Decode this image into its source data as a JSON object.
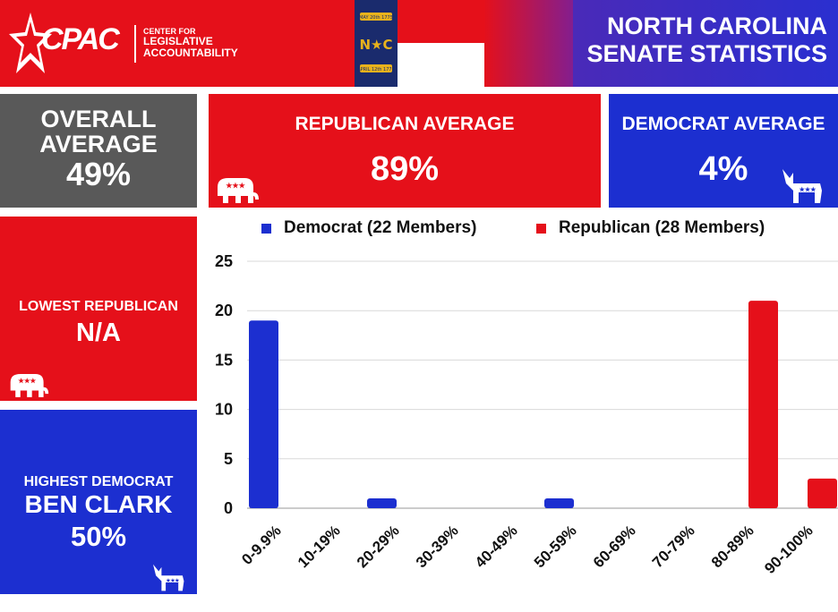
{
  "header": {
    "logo_text": "CPAC",
    "logo_sub_top": "CENTER FOR",
    "logo_sub_line1": "LEGISLATIVE",
    "logo_sub_line2": "ACCOUNTABILITY",
    "title_line1": "NORTH CAROLINA",
    "title_line2": "SENATE STATISTICS",
    "flag": {
      "letters": "N★C",
      "top_scroll": "MAY 20th 1775",
      "bottom_scroll": "APRIL 12th 1776",
      "colors": {
        "blue": "#1a2b6d",
        "red": "#e5101a",
        "white": "#ffffff",
        "gold": "#e8b21c"
      }
    }
  },
  "stats": {
    "overall": {
      "label_line1": "OVERALL",
      "label_line2": "AVERAGE",
      "value": "49%"
    },
    "republican": {
      "label": "REPUBLICAN AVERAGE",
      "value": "89%"
    },
    "democrat": {
      "label": "DEMOCRAT AVERAGE",
      "value": "4%"
    },
    "lowest_republican": {
      "label": "LOWEST REPUBLICAN",
      "value": "N/A"
    },
    "highest_democrat": {
      "label": "HIGHEST DEMOCRAT",
      "name": "BEN CLARK",
      "value": "50%"
    }
  },
  "colors": {
    "republican": "#e5101a",
    "democrat": "#1c2fd0",
    "overall": "#595959"
  },
  "chart_data": {
    "type": "bar",
    "title": "",
    "xlabel": "",
    "ylabel": "",
    "ylim": [
      0,
      25
    ],
    "yticks": [
      0,
      5,
      10,
      15,
      20,
      25
    ],
    "grid": true,
    "legend_position": "top",
    "categories": [
      "0-9.9%",
      "10-19%",
      "20-29%",
      "30-39%",
      "40-49%",
      "50-59%",
      "60-69%",
      "70-79%",
      "80-89%",
      "90-100%"
    ],
    "series": [
      {
        "name": "Democrat (22 Members)",
        "color": "#1c2fd0",
        "values": [
          19,
          0,
          1,
          0,
          0,
          1,
          0,
          0,
          0,
          0
        ]
      },
      {
        "name": "Republican (28 Members)",
        "color": "#e5101a",
        "values": [
          0,
          0,
          0,
          0,
          0,
          0,
          0,
          0,
          21,
          3
        ]
      }
    ]
  }
}
